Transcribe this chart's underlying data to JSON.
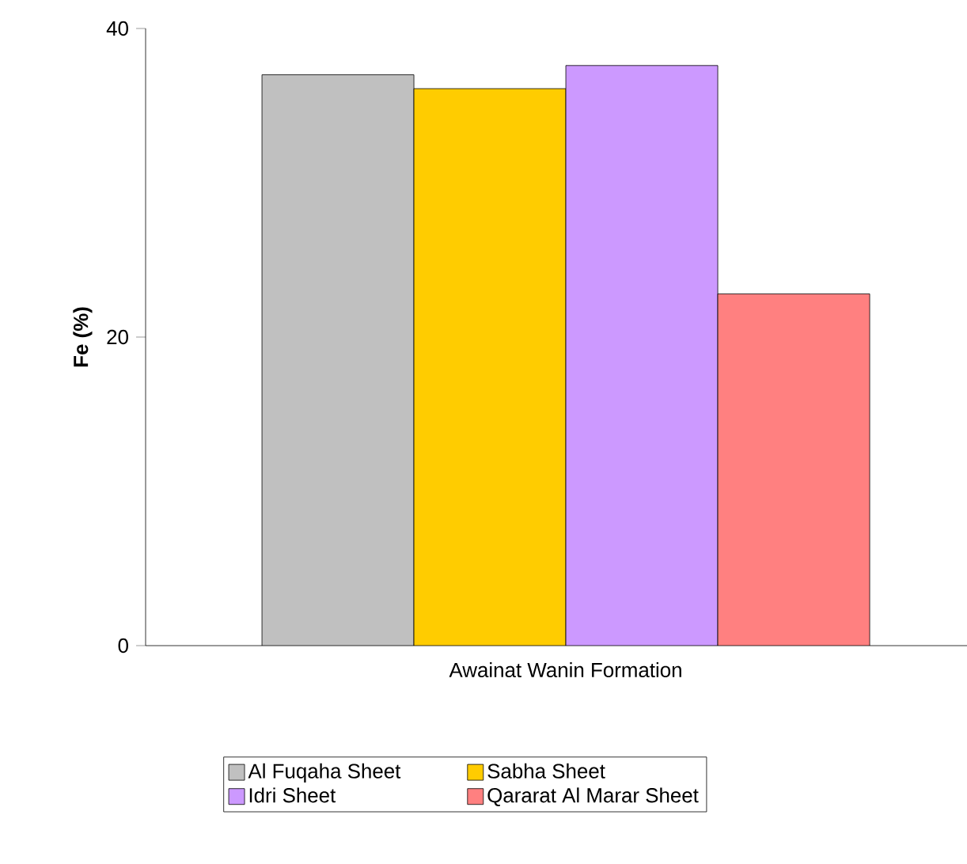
{
  "chart_data": {
    "type": "bar",
    "ylabel": "Fe (%)",
    "categories": [
      "Awainat Wanin Formation"
    ],
    "series": [
      {
        "name": "Al Fuqaha Sheet",
        "color": "#c0c0c0",
        "values": [
          37.0
        ]
      },
      {
        "name": "Sabha Sheet",
        "color": "#ffcc00",
        "values": [
          36.1
        ]
      },
      {
        "name": "Idri Sheet",
        "color": "#cc99ff",
        "values": [
          37.6
        ]
      },
      {
        "name": "Qararat Al Marar Sheet",
        "color": "#ff8080",
        "values": [
          22.8
        ]
      }
    ],
    "ylim": [
      0,
      40
    ],
    "yticks": [
      0,
      20,
      40
    ],
    "grid": false,
    "legend": "bottom"
  }
}
